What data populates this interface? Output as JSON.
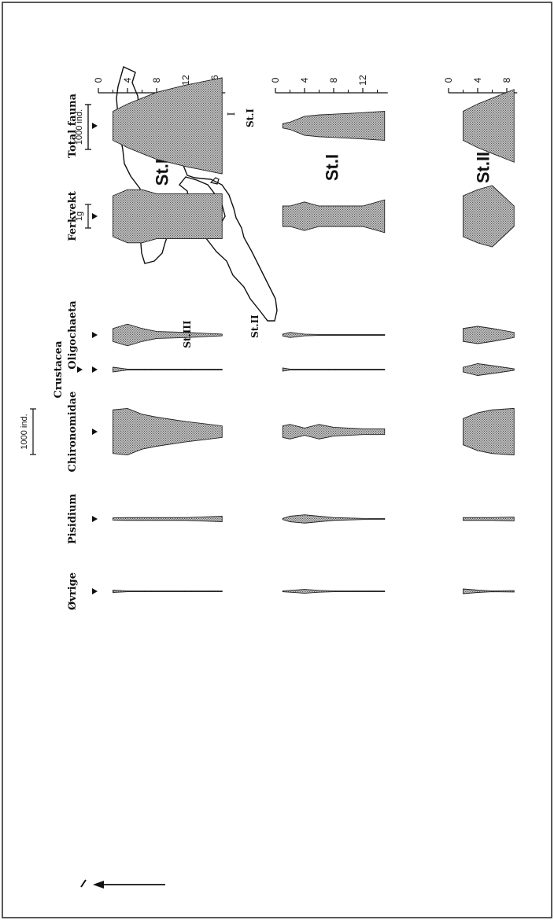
{
  "chart_data": {
    "type": "area",
    "kind": "kite diagrams of fauna abundance by depth",
    "orientation": "rotated 90 degrees counter-clockwise",
    "depth_axis_unit": "m",
    "column_labels": {
      "total_fauna": "Total fauna",
      "ferkvekt": "Ferkvekt",
      "oligochaeta": "Oligochaeta",
      "crustacea": "Crustacea",
      "chironomidae": "Chironomidae",
      "pisidium": "Pisidium",
      "ovrige": "Øvrige"
    },
    "scale_bars": {
      "ind_top": "1000 ind.",
      "ind_total": "1000 ind.",
      "weight": "1g"
    },
    "stations": [
      {
        "name": "St.III",
        "ticks": [
          "0",
          "4",
          "8",
          "12",
          "16"
        ],
        "depth_max": 17,
        "depths": [
          2,
          4,
          6,
          8,
          12,
          17
        ],
        "series": {
          "total_fauna": [
            1000,
            1500,
            1900,
            2300,
            2800,
            3300
          ],
          "ferkvekt": [
            1.0,
            1.3,
            1.3,
            1.1,
            1.1,
            1.1
          ],
          "oligochaeta": [
            150,
            250,
            150,
            80,
            60,
            20
          ],
          "crustacea": [
            60,
            0,
            0,
            0,
            0,
            0
          ],
          "chironomidae": [
            1500,
            1600,
            1200,
            1000,
            700,
            400
          ],
          "pisidium": [
            40,
            50,
            50,
            50,
            50,
            100
          ],
          "ovrige": [
            50,
            10,
            10,
            10,
            10,
            10
          ]
        }
      },
      {
        "name": "St.I",
        "ticks": [
          "0",
          "4",
          "8",
          "12"
        ],
        "depth_max": 15,
        "depths": [
          1,
          2,
          4,
          6,
          8,
          12,
          15
        ],
        "series": {
          "total_fauna": [
            150,
            250,
            650,
            750,
            800,
            900,
            1000
          ],
          "ferkvekt": [
            0.5,
            0.5,
            0.7,
            0.5,
            0.5,
            0.5,
            0.8
          ],
          "oligochaeta": [
            20,
            60,
            20,
            10,
            5,
            5,
            5
          ],
          "crustacea": [
            40,
            0,
            0,
            0,
            0,
            0,
            0
          ],
          "chironomidae": [
            400,
            500,
            250,
            500,
            300,
            200,
            200
          ],
          "pisidium": [
            20,
            100,
            150,
            100,
            50,
            20,
            0
          ],
          "ovrige": [
            20,
            40,
            80,
            40,
            20,
            10,
            10
          ]
        }
      },
      {
        "name": "St.II",
        "ticks": [
          "0",
          "4",
          "8"
        ],
        "depth_max": 9,
        "depths": [
          2,
          4,
          6,
          9
        ],
        "series": {
          "total_fauna": [
            1000,
            1500,
            1900,
            2500
          ],
          "ferkvekt": [
            1.0,
            1.3,
            1.5,
            0.5
          ],
          "oligochaeta": [
            150,
            200,
            150,
            60
          ],
          "crustacea": [
            60,
            150,
            100,
            20
          ],
          "chironomidae": [
            900,
            1300,
            1500,
            1600
          ],
          "pisidium": [
            50,
            50,
            50,
            70
          ],
          "ovrige": [
            100,
            50,
            10,
            30
          ]
        }
      }
    ]
  },
  "map": {
    "station_labels": [
      "St.III",
      "St.II",
      "St.I"
    ],
    "transect_marks": [
      "I"
    ]
  }
}
